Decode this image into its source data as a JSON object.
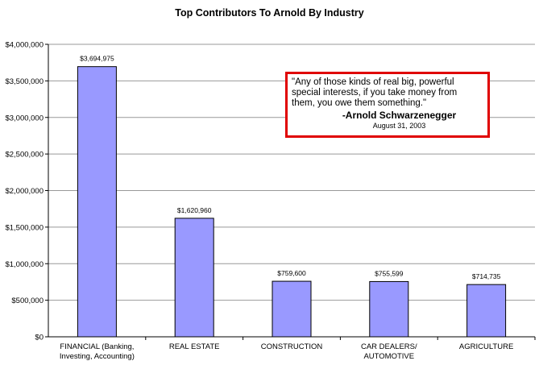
{
  "chart_data": {
    "type": "bar",
    "title": "Top Contributors To Arnold By Industry",
    "xlabel": "",
    "ylabel": "",
    "ylim": [
      0,
      4000000
    ],
    "yticks": [
      "$0",
      "$500,000",
      "$1,000,000",
      "$1,500,000",
      "$2,000,000",
      "$2,500,000",
      "$3,000,000",
      "$3,500,000",
      "$4,000,000"
    ],
    "categories": [
      [
        "FINANCIAL (Banking,",
        "Investing, Accounting)"
      ],
      [
        "REAL ESTATE"
      ],
      [
        "CONSTRUCTION"
      ],
      [
        "CAR DEALERS/",
        "AUTOMOTIVE"
      ],
      [
        "AGRICULTURE"
      ]
    ],
    "values": [
      3694975,
      1620960,
      759600,
      755599,
      714735
    ],
    "data_labels": [
      "$3,694,975",
      "$1,620,960",
      "$759,600",
      "$755,599",
      "$714,735"
    ],
    "bar_color": "#9999ff",
    "grid": true,
    "annotation": {
      "quote": "\"Any of those kinds of real big, powerful special interests, if you take money from them, you owe them something.\"",
      "author": "-Arnold Schwarzenegger",
      "date": "August 31, 2003"
    }
  }
}
